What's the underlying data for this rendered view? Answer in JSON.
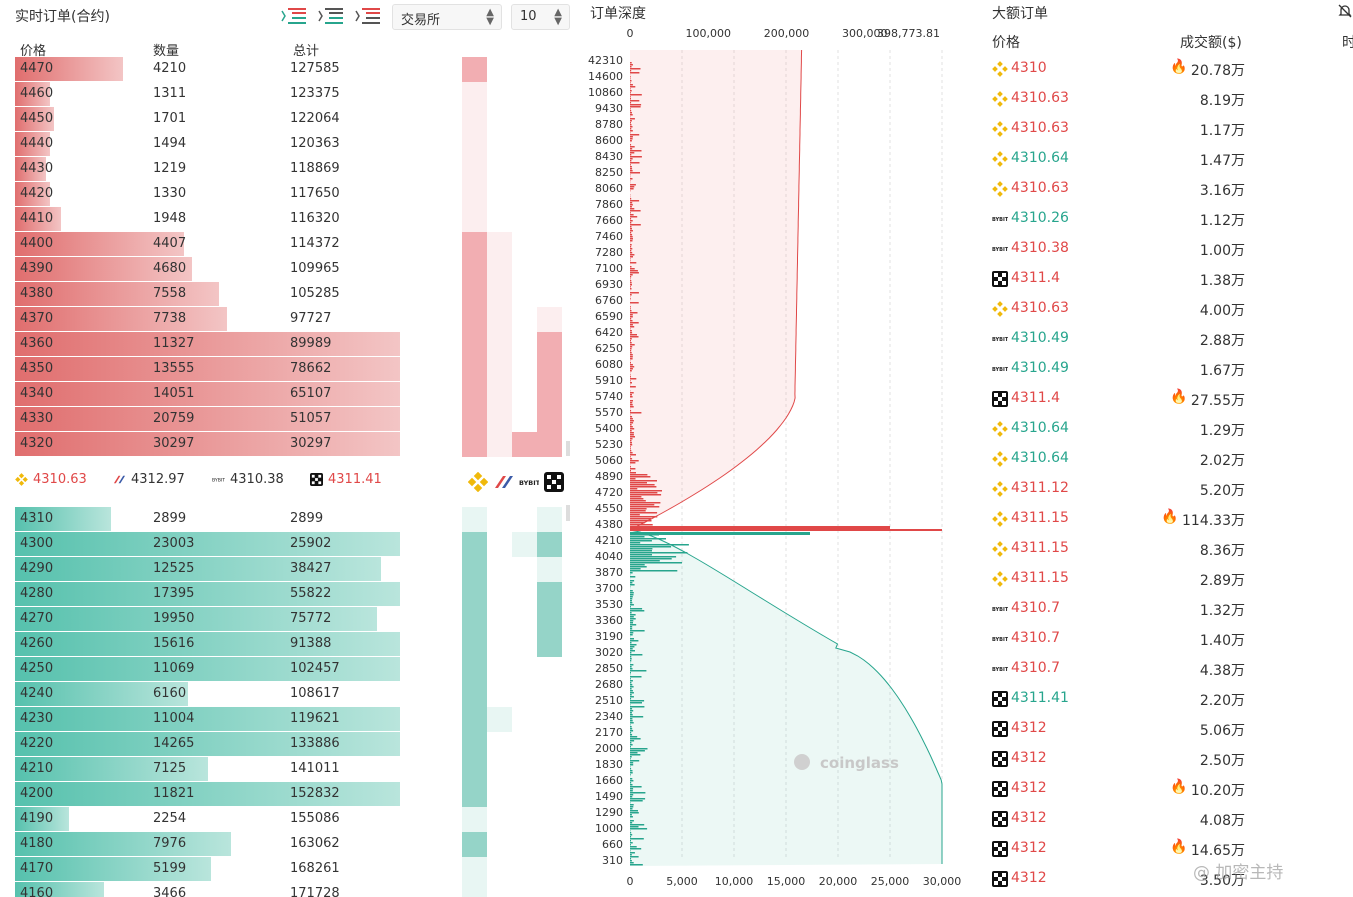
{
  "orderbook": {
    "title": "实时订单(合约)",
    "exchange_select": "交易所",
    "depth_select": "10",
    "headers": {
      "price": "价格",
      "qty": "数量",
      "total": "总计"
    },
    "asks": [
      {
        "price": "4470",
        "qty": "4210",
        "total": "127585",
        "fill": 0.28
      },
      {
        "price": "4460",
        "qty": "1311",
        "total": "123375",
        "fill": 0.09
      },
      {
        "price": "4450",
        "qty": "1701",
        "total": "122064",
        "fill": 0.1
      },
      {
        "price": "4440",
        "qty": "1494",
        "total": "120363",
        "fill": 0.09
      },
      {
        "price": "4430",
        "qty": "1219",
        "total": "118869",
        "fill": 0.08
      },
      {
        "price": "4420",
        "qty": "1330",
        "total": "117650",
        "fill": 0.09
      },
      {
        "price": "4410",
        "qty": "1948",
        "total": "116320",
        "fill": 0.12
      },
      {
        "price": "4400",
        "qty": "4407",
        "total": "114372",
        "fill": 0.44
      },
      {
        "price": "4390",
        "qty": "4680",
        "total": "109965",
        "fill": 0.46
      },
      {
        "price": "4380",
        "qty": "7558",
        "total": "105285",
        "fill": 0.53
      },
      {
        "price": "4370",
        "qty": "7738",
        "total": "97727",
        "fill": 0.55
      },
      {
        "price": "4360",
        "qty": "11327",
        "total": "89989",
        "fill": 1.0
      },
      {
        "price": "4350",
        "qty": "13555",
        "total": "78662",
        "fill": 1.0
      },
      {
        "price": "4340",
        "qty": "14051",
        "total": "65107",
        "fill": 1.0
      },
      {
        "price": "4330",
        "qty": "20759",
        "total": "51057",
        "fill": 1.0
      },
      {
        "price": "4320",
        "qty": "30297",
        "total": "30297",
        "fill": 1.0
      }
    ],
    "mid_prices": [
      {
        "exchange": "binance",
        "value": "4310.63",
        "color": "#e04848"
      },
      {
        "exchange": "bitmex",
        "value": "4312.97",
        "color": "#333333"
      },
      {
        "exchange": "bybit",
        "value": "4310.38",
        "color": "#333333"
      },
      {
        "exchange": "okx",
        "value": "4311.41",
        "color": "#e04848"
      }
    ],
    "bids": [
      {
        "price": "4310",
        "qty": "2899",
        "total": "2899",
        "fill": 0.25
      },
      {
        "price": "4300",
        "qty": "23003",
        "total": "25902",
        "fill": 1.0
      },
      {
        "price": "4290",
        "qty": "12525",
        "total": "38427",
        "fill": 0.95
      },
      {
        "price": "4280",
        "qty": "17395",
        "total": "55822",
        "fill": 1.0
      },
      {
        "price": "4270",
        "qty": "19950",
        "total": "75772",
        "fill": 0.94
      },
      {
        "price": "4260",
        "qty": "15616",
        "total": "91388",
        "fill": 1.0
      },
      {
        "price": "4250",
        "qty": "11069",
        "total": "102457",
        "fill": 1.0
      },
      {
        "price": "4240",
        "qty": "6160",
        "total": "108617",
        "fill": 0.45
      },
      {
        "price": "4230",
        "qty": "11004",
        "total": "119621",
        "fill": 1.0
      },
      {
        "price": "4220",
        "qty": "14265",
        "total": "133886",
        "fill": 1.0
      },
      {
        "price": "4210",
        "qty": "7125",
        "total": "141011",
        "fill": 0.5
      },
      {
        "price": "4200",
        "qty": "11821",
        "total": "152832",
        "fill": 1.0
      },
      {
        "price": "4190",
        "qty": "2254",
        "total": "155086",
        "fill": 0.14
      },
      {
        "price": "4180",
        "qty": "7976",
        "total": "163062",
        "fill": 0.56
      },
      {
        "price": "4170",
        "qty": "5199",
        "total": "168261",
        "fill": 0.51
      },
      {
        "price": "4160",
        "qty": "3466",
        "total": "171728",
        "fill": 0.23
      }
    ],
    "ask_heat": [
      [
        0.9,
        0,
        0,
        0
      ],
      [
        0.2,
        0,
        0,
        0
      ],
      [
        0.2,
        0,
        0,
        0
      ],
      [
        0.2,
        0,
        0,
        0
      ],
      [
        0.2,
        0,
        0,
        0
      ],
      [
        0.2,
        0,
        0,
        0
      ],
      [
        0.2,
        0,
        0,
        0
      ],
      [
        0.9,
        0.2,
        0,
        0
      ],
      [
        0.9,
        0.2,
        0,
        0
      ],
      [
        0.9,
        0.2,
        0,
        0
      ],
      [
        0.9,
        0.2,
        0,
        0.3
      ],
      [
        0.9,
        0.2,
        0,
        0.9
      ],
      [
        0.9,
        0.2,
        0,
        0.9
      ],
      [
        0.9,
        0.2,
        0,
        0.9
      ],
      [
        0.9,
        0.2,
        0,
        0.9
      ],
      [
        0.9,
        0.2,
        0.9,
        0.9
      ]
    ],
    "bid_heat": [
      [
        0.2,
        0,
        0,
        0.3
      ],
      [
        0.9,
        0,
        0.3,
        0.7
      ],
      [
        0.9,
        0,
        0,
        0.3
      ],
      [
        0.9,
        0,
        0,
        0.9
      ],
      [
        0.9,
        0,
        0,
        0.9
      ],
      [
        0.9,
        0,
        0,
        0.9
      ],
      [
        0.9,
        0,
        0,
        0
      ],
      [
        0.9,
        0,
        0,
        0
      ],
      [
        0.9,
        0.2,
        0,
        0
      ],
      [
        0.9,
        0,
        0,
        0
      ],
      [
        0.9,
        0,
        0,
        0
      ],
      [
        0.9,
        0,
        0,
        0
      ],
      [
        0.2,
        0,
        0,
        0
      ],
      [
        0.9,
        0,
        0,
        0
      ],
      [
        0.2,
        0,
        0,
        0
      ],
      [
        0.2,
        0,
        0,
        0
      ]
    ]
  },
  "depth_chart": {
    "title": "订单深度",
    "watermark": "coinglass",
    "chart_data": {
      "type": "area",
      "title": "订单深度",
      "y_ticks": [
        "42310",
        "14600",
        "10860",
        "9430",
        "8780",
        "8600",
        "8430",
        "8250",
        "8060",
        "7860",
        "7660",
        "7460",
        "7280",
        "7100",
        "6930",
        "6760",
        "6590",
        "6420",
        "6250",
        "6080",
        "5910",
        "5740",
        "5570",
        "5400",
        "5230",
        "5060",
        "4890",
        "4720",
        "4550",
        "4380",
        "4210",
        "4040",
        "3870",
        "3700",
        "3530",
        "3360",
        "3190",
        "3020",
        "2850",
        "2680",
        "2510",
        "2340",
        "2170",
        "2000",
        "1830",
        "1660",
        "1490",
        "1290",
        "1000",
        "660",
        "310"
      ],
      "x_top_ticks": [
        "0",
        "100,000",
        "200,000",
        "300,000",
        "398,773.81"
      ],
      "x_top_range": [
        0,
        398773.81
      ],
      "x_bottom_ticks": [
        "0",
        "5,000",
        "10,000",
        "15,000",
        "20,000",
        "25,000",
        "30,000"
      ],
      "x_bottom_range": [
        0,
        30000
      ],
      "series": [
        {
          "name": "asks cumulative",
          "color": "#e04848"
        },
        {
          "name": "bids cumulative",
          "color": "#27a58d"
        }
      ]
    }
  },
  "large_orders": {
    "title": "大额订单",
    "headers": {
      "price": "价格",
      "amount": "成交额($)",
      "time": "时"
    },
    "rows": [
      {
        "ex": "binance",
        "price": "4310",
        "side": "red",
        "amount": "20.78万",
        "hot": true
      },
      {
        "ex": "binance",
        "price": "4310.63",
        "side": "red",
        "amount": "8.19万",
        "hot": false
      },
      {
        "ex": "binance",
        "price": "4310.63",
        "side": "red",
        "amount": "1.17万",
        "hot": false
      },
      {
        "ex": "binance",
        "price": "4310.64",
        "side": "green",
        "amount": "1.47万",
        "hot": false
      },
      {
        "ex": "binance",
        "price": "4310.63",
        "side": "red",
        "amount": "3.16万",
        "hot": false
      },
      {
        "ex": "bybit",
        "price": "4310.26",
        "side": "green",
        "amount": "1.12万",
        "hot": false
      },
      {
        "ex": "bybit",
        "price": "4310.38",
        "side": "red",
        "amount": "1.00万",
        "hot": false
      },
      {
        "ex": "okx",
        "price": "4311.4",
        "side": "red",
        "amount": "1.38万",
        "hot": false
      },
      {
        "ex": "binance",
        "price": "4310.63",
        "side": "red",
        "amount": "4.00万",
        "hot": false
      },
      {
        "ex": "bybit",
        "price": "4310.49",
        "side": "green",
        "amount": "2.88万",
        "hot": false
      },
      {
        "ex": "bybit",
        "price": "4310.49",
        "side": "green",
        "amount": "1.67万",
        "hot": false
      },
      {
        "ex": "okx",
        "price": "4311.4",
        "side": "red",
        "amount": "27.55万",
        "hot": true
      },
      {
        "ex": "binance",
        "price": "4310.64",
        "side": "green",
        "amount": "1.29万",
        "hot": false
      },
      {
        "ex": "binance",
        "price": "4310.64",
        "side": "green",
        "amount": "2.02万",
        "hot": false
      },
      {
        "ex": "binance",
        "price": "4311.12",
        "side": "red",
        "amount": "5.20万",
        "hot": false
      },
      {
        "ex": "binance",
        "price": "4311.15",
        "side": "red",
        "amount": "114.33万",
        "hot": true
      },
      {
        "ex": "binance",
        "price": "4311.15",
        "side": "red",
        "amount": "8.36万",
        "hot": false
      },
      {
        "ex": "binance",
        "price": "4311.15",
        "side": "red",
        "amount": "2.89万",
        "hot": false
      },
      {
        "ex": "bybit",
        "price": "4310.7",
        "side": "red",
        "amount": "1.32万",
        "hot": false
      },
      {
        "ex": "bybit",
        "price": "4310.7",
        "side": "red",
        "amount": "1.40万",
        "hot": false
      },
      {
        "ex": "bybit",
        "price": "4310.7",
        "side": "red",
        "amount": "4.38万",
        "hot": false
      },
      {
        "ex": "okx",
        "price": "4311.41",
        "side": "green",
        "amount": "2.20万",
        "hot": false
      },
      {
        "ex": "okx",
        "price": "4312",
        "side": "red",
        "amount": "5.06万",
        "hot": false
      },
      {
        "ex": "okx",
        "price": "4312",
        "side": "red",
        "amount": "2.50万",
        "hot": false
      },
      {
        "ex": "okx",
        "price": "4312",
        "side": "red",
        "amount": "10.20万",
        "hot": true
      },
      {
        "ex": "okx",
        "price": "4312",
        "side": "red",
        "amount": "4.08万",
        "hot": false
      },
      {
        "ex": "okx",
        "price": "4312",
        "side": "red",
        "amount": "14.65万",
        "hot": true
      },
      {
        "ex": "okx",
        "price": "4312",
        "side": "red",
        "amount": "3.50万",
        "hot": false
      }
    ],
    "overlay_text": "@ 加密主持"
  }
}
